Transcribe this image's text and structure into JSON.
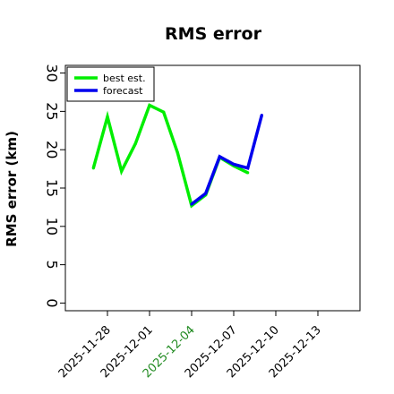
{
  "chart_data": {
    "type": "line",
    "title": "RMS error",
    "ylabel": "RMS error (km)",
    "xlabel": "",
    "ylim": [
      -1,
      31
    ],
    "yticks": [
      0,
      5,
      10,
      15,
      20,
      25,
      30
    ],
    "xlim": [
      "2025-11-25",
      "2025-12-16"
    ],
    "xticks": [
      "2025-11-28",
      "2025-12-01",
      "2025-12-04",
      "2025-12-07",
      "2025-12-10",
      "2025-12-13"
    ],
    "highlight_tick": "2025-12-04",
    "legend_location": "upper left",
    "series": [
      {
        "name": "best est.",
        "color": "#00ee00",
        "x": [
          "2025-11-27",
          "2025-11-28",
          "2025-11-29",
          "2025-11-30",
          "2025-12-01",
          "2025-12-02",
          "2025-12-03",
          "2025-12-04",
          "2025-12-05",
          "2025-12-06",
          "2025-12-07",
          "2025-12-08"
        ],
        "values": [
          17.6,
          24.3,
          17.2,
          20.8,
          25.8,
          24.9,
          19.6,
          12.7,
          14.1,
          19.0,
          17.9,
          17.0
        ]
      },
      {
        "name": "forecast",
        "color": "#0000ee",
        "x": [
          "2025-12-04",
          "2025-12-05",
          "2025-12-06",
          "2025-12-07",
          "2025-12-08",
          "2025-12-09"
        ],
        "values": [
          12.9,
          14.3,
          19.1,
          18.1,
          17.6,
          24.5
        ]
      }
    ],
    "tick_colors": {
      "default": "#000000",
      "highlight": "#228b22"
    }
  }
}
